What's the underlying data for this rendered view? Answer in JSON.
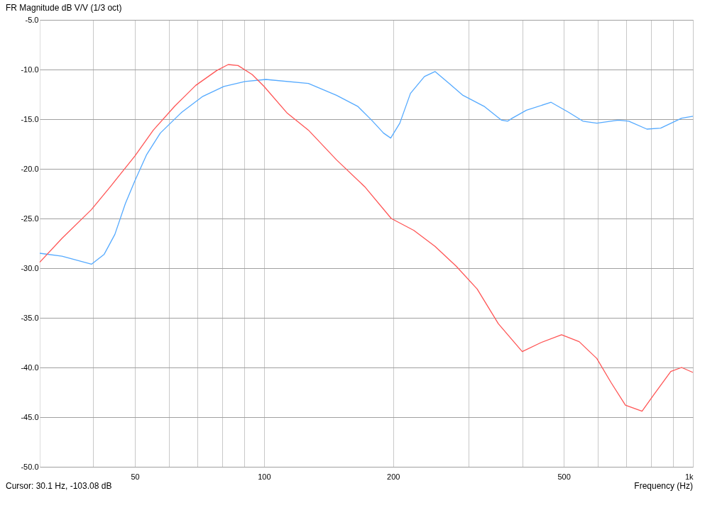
{
  "chart_data": {
    "type": "line",
    "title": "FR Magnitude dB V/V (1/3 oct)",
    "xlabel": "Frequency (Hz)",
    "annotations": [
      "Cursor: 30.1 Hz, -103.08 dB"
    ],
    "log": "x",
    "grid": true,
    "line_style": "solid",
    "marker": "none",
    "xlim": [
      30,
      1000
    ],
    "xticks": [
      {
        "value": 40,
        "label": null
      },
      50,
      {
        "value": 60,
        "label": null
      },
      {
        "value": 70,
        "label": null
      },
      {
        "value": 80,
        "label": null
      },
      {
        "value": 90,
        "label": null
      },
      100,
      200,
      {
        "value": 300,
        "label": null
      },
      {
        "value": 400,
        "label": null
      },
      500,
      {
        "value": 600,
        "label": null
      },
      {
        "value": 700,
        "label": null
      },
      {
        "value": 800,
        "label": null
      },
      {
        "value": 900,
        "label": null
      },
      {
        "value": 1000,
        "label": "1k"
      }
    ],
    "ylim": [
      -50,
      -5
    ],
    "yticks": [
      {
        "value": -5,
        "label": "-5.0"
      },
      {
        "value": -10,
        "label": "-10.0"
      },
      {
        "value": -15,
        "label": "-15.0"
      },
      {
        "value": -20,
        "label": "-20.0"
      },
      {
        "value": -25,
        "label": "-25.0"
      },
      {
        "value": -30,
        "label": "-30.0"
      },
      {
        "value": -35,
        "label": "-35.0"
      },
      {
        "value": -40,
        "label": "-40.0"
      },
      {
        "value": -45,
        "label": "-45.0"
      },
      {
        "value": -50,
        "label": "-50.0"
      }
    ],
    "series": [
      {
        "color": "#55aaff",
        "x": [
          30,
          33.8,
          39.6,
          42.4,
          44.9,
          47.5,
          50,
          53.2,
          57.3,
          64.3,
          72,
          80.6,
          90.3,
          101,
          126.9,
          147.6,
          165.3,
          178.2,
          190,
          197.4,
          207.3,
          219.5,
          236.6,
          250.4,
          270,
          291,
          325.8,
          358,
          370,
          379,
          409,
          467,
          513,
          554,
          597,
          670,
          709,
          781,
          841,
          941,
          1000
        ],
        "values": [
          -28.5,
          -28.8,
          -29.6,
          -28.6,
          -26.6,
          -23.5,
          -21.2,
          -18.6,
          -16.4,
          -14.3,
          -12.7,
          -11.7,
          -11.2,
          -11.0,
          -11.4,
          -12.6,
          -13.7,
          -15.1,
          -16.4,
          -16.9,
          -15.4,
          -12.4,
          -10.7,
          -10.2,
          -11.4,
          -12.6,
          -13.7,
          -15.1,
          -15.2,
          -14.9,
          -14.1,
          -13.3,
          -14.3,
          -15.2,
          -15.4,
          -15.1,
          -15.2,
          -16.0,
          -15.9,
          -14.9,
          -14.7
        ]
      },
      {
        "color": "#ff5555",
        "x": [
          30,
          33.8,
          39.6,
          44.0,
          50,
          55.2,
          61.9,
          69.3,
          77.6,
          82.5,
          87.0,
          93.8,
          100,
          113.3,
          126.9,
          147.6,
          171.7,
          198,
          223.5,
          250.4,
          280.6,
          314,
          351.9,
          400,
          442,
          494,
          543,
          597,
          644,
          696,
          761,
          809,
          888,
          941,
          1000
        ],
        "values": [
          -29.4,
          -27.0,
          -24.1,
          -21.7,
          -18.7,
          -16.1,
          -13.7,
          -11.6,
          -10.1,
          -9.5,
          -9.6,
          -10.5,
          -11.7,
          -14.4,
          -16.1,
          -19.1,
          -21.8,
          -25.0,
          -26.2,
          -27.8,
          -29.8,
          -32.1,
          -35.6,
          -38.4,
          -37.5,
          -36.7,
          -37.4,
          -39.1,
          -41.5,
          -43.8,
          -44.4,
          -42.8,
          -40.4,
          -40.0,
          -40.5
        ]
      }
    ]
  }
}
